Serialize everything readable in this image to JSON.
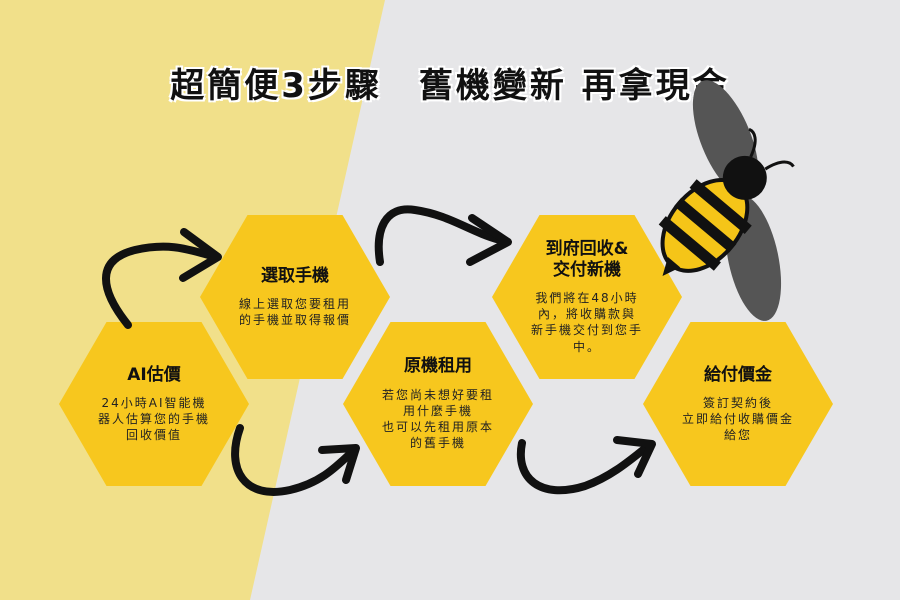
{
  "title": "超簡便3步驟　舊機變新 再拿現金",
  "colors": {
    "hex_fill": "#F7C71E",
    "left_bg": "#F1E08A",
    "right_bg": "#E6E6E8",
    "arrow": "#111111",
    "bee_yellow": "#F5C518",
    "bee_wing": "#555555"
  },
  "steps": [
    {
      "id": "ai",
      "title": "AI估價",
      "desc": "24小時AI智能機\n器人估算您的手機\n回收價值"
    },
    {
      "id": "select",
      "title": "選取手機",
      "desc": "線上選取您要租用\n的手機並取得報價"
    },
    {
      "id": "rent",
      "title": "原機租用",
      "desc": "若您尚未想好要租\n用什麼手機\n也可以先租用原本\n的舊手機"
    },
    {
      "id": "delivery",
      "title": "到府回收&\n交付新機",
      "desc": "我們將在48小時\n內，將收購款與\n新手機交付到您手\n中。"
    },
    {
      "id": "pay",
      "title": "給付價金",
      "desc": "簽訂契約後\n立即給付收購價金\n給您"
    }
  ],
  "icons": [
    "bee-icon",
    "arrow-icon"
  ]
}
